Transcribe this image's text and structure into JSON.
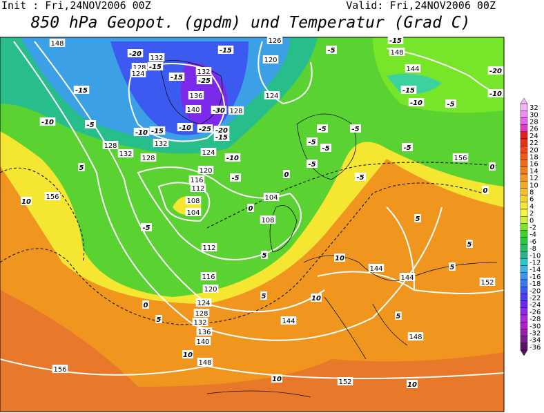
{
  "header": {
    "init": "Init : Fri,24NOV2006 00Z",
    "valid": "Valid: Fri,24NOV2006 00Z",
    "title": "850 hPa Geopot. (gpdm) und Temperatur (Grad C)"
  },
  "colorbar": {
    "ticks": [
      32,
      30,
      28,
      26,
      24,
      22,
      20,
      18,
      16,
      14,
      12,
      10,
      8,
      6,
      4,
      2,
      0,
      -2,
      -4,
      -6,
      -8,
      -10,
      -12,
      -14,
      -16,
      -18,
      -20,
      -22,
      -24,
      -26,
      -28,
      -30,
      -32,
      -34,
      -36
    ],
    "colors": [
      "#f5b4f5",
      "#f08cf0",
      "#e864e8",
      "#e03cc8",
      "#e01e1e",
      "#e83214",
      "#f04614",
      "#f05a14",
      "#f06e14",
      "#f0821e",
      "#f59628",
      "#f5aa28",
      "#f5be28",
      "#f5d228",
      "#f5e632",
      "#f5f546",
      "#c8f03c",
      "#78e628",
      "#3cd228",
      "#28c83c",
      "#28be64",
      "#28b48c",
      "#28c8c8",
      "#3cb4e6",
      "#3c96f0",
      "#3c78f0",
      "#3c5af0",
      "#503cf0",
      "#6e28f0",
      "#8c28e6",
      "#aa28dc",
      "#b41ec8",
      "#961eaa",
      "#781e8c",
      "#5a1464"
    ]
  },
  "contour_labels": {
    "geopotential": [
      148,
      132,
      128,
      124,
      132,
      136,
      140,
      132,
      128,
      132,
      128,
      124,
      120,
      116,
      112,
      108,
      104,
      104,
      108,
      112,
      116,
      120,
      124,
      128,
      132,
      136,
      140,
      148,
      156,
      156,
      152,
      148,
      144,
      144,
      144,
      152,
      156,
      144,
      148,
      120,
      124,
      128,
      126
    ],
    "temperature": [
      -20,
      -15,
      -15,
      -25,
      -30,
      -25,
      -20,
      -15,
      -10,
      -15,
      -10,
      -15,
      -10,
      -5,
      -15,
      -10,
      -5,
      -5,
      0,
      0,
      5,
      10,
      -5,
      -5,
      -5,
      -5,
      -5,
      -5,
      -5,
      -5,
      -10,
      -5,
      -15,
      -10,
      -20,
      0,
      0,
      5,
      5,
      5,
      10,
      5,
      5,
      0,
      5,
      10,
      5,
      10,
      10,
      10,
      -15
    ]
  }
}
